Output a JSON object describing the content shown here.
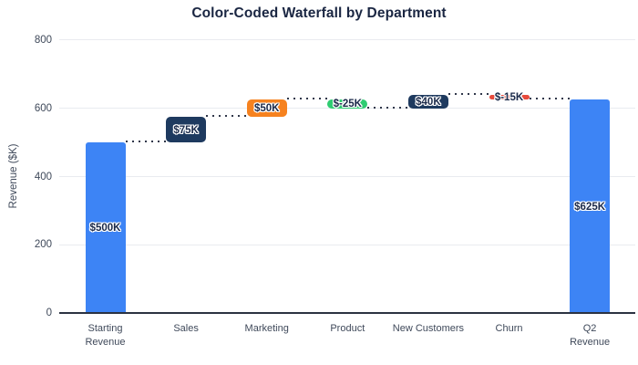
{
  "title": "Color-Coded Waterfall by Department",
  "chart_data": {
    "type": "bar",
    "subtype": "waterfall",
    "title": "Color-Coded Waterfall by Department",
    "xlabel": "",
    "ylabel": "Revenue ($K)",
    "ylim": [
      0,
      800
    ],
    "yticks": [
      "0",
      "200",
      "400",
      "600",
      "800"
    ],
    "grid": true,
    "legend": false,
    "categories": [
      "Starting\nRevenue",
      "Sales",
      "Marketing",
      "Product",
      "New Customers",
      "Churn",
      "Q2 Revenue"
    ],
    "bars": [
      {
        "category": "Starting Revenue",
        "kind": "total",
        "base": 0,
        "end": 500,
        "delta": 500,
        "value_label": "$500K",
        "color": "#3d84f5"
      },
      {
        "category": "Sales",
        "kind": "increase",
        "base": 500,
        "end": 575,
        "delta": 75,
        "value_label": "$75K",
        "color": "#1e3a5f"
      },
      {
        "category": "Marketing",
        "kind": "increase",
        "base": 575,
        "end": 625,
        "delta": 50,
        "value_label": "$50K",
        "color": "#f6821f"
      },
      {
        "category": "Product",
        "kind": "decrease",
        "base": 600,
        "end": 625,
        "delta": -25,
        "value_label": "$-25K",
        "color": "#2ecc71"
      },
      {
        "category": "New Customers",
        "kind": "increase",
        "base": 600,
        "end": 640,
        "delta": 40,
        "value_label": "$40K",
        "color": "#1e3a5f"
      },
      {
        "category": "Churn",
        "kind": "decrease",
        "base": 625,
        "end": 640,
        "delta": -15,
        "value_label": "$-15K",
        "color": "#e74a3c"
      },
      {
        "category": "Q2 Revenue",
        "kind": "total",
        "base": 0,
        "end": 625,
        "delta": 625,
        "value_label": "$625K",
        "color": "#3d84f5"
      }
    ],
    "connector_levels": [
      500,
      575,
      625,
      600,
      640,
      625
    ],
    "colors": {
      "grid": "#e9ebf0",
      "axis": "#2c3342",
      "connector": "#30374a",
      "tick_text": "#3f495a",
      "title_text": "#1a2642",
      "value_label_text": "#1b2a4a",
      "value_label_halo": "#ffffff",
      "background": "#ffffff"
    }
  }
}
